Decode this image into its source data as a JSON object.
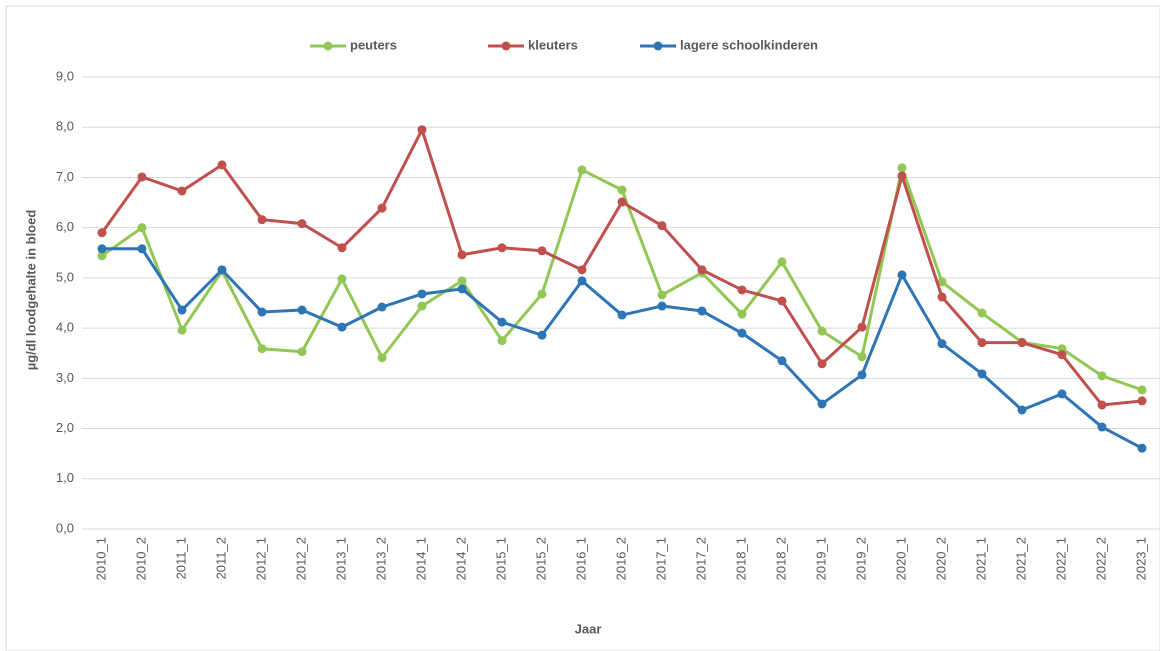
{
  "chart_data": {
    "type": "line",
    "x_label": "Jaar",
    "y_label": "µg/dl loodgehalte in bloed",
    "categories": [
      "2010_1",
      "2010_2",
      "2011_1",
      "2011_2",
      "2012_1",
      "2012_2",
      "2013_1",
      "2013_2",
      "2014_1",
      "2014_2",
      "2015_1",
      "2015_2",
      "2016_1",
      "2016_2",
      "2017_1",
      "2017_2",
      "2018_1",
      "2018_2",
      "2019_1",
      "2019_2",
      "2020_1",
      "2020_2",
      "2021_1",
      "2021_2",
      "2022_1",
      "2022_2",
      "2023_1"
    ],
    "series": [
      {
        "name": "peuters",
        "color": "#92c755",
        "values": [
          5.44,
          6.0,
          3.96,
          5.14,
          3.59,
          3.53,
          4.98,
          3.41,
          4.44,
          4.94,
          3.75,
          4.68,
          7.15,
          6.75,
          4.66,
          5.1,
          4.28,
          5.32,
          3.94,
          3.43,
          7.19,
          4.92,
          4.3,
          3.72,
          3.59,
          3.05,
          2.77
        ]
      },
      {
        "name": "kleuters",
        "color": "#c0504d",
        "values": [
          5.9,
          7.01,
          6.73,
          7.25,
          6.16,
          6.08,
          5.6,
          6.39,
          7.95,
          5.46,
          5.6,
          5.54,
          5.16,
          6.51,
          6.04,
          5.16,
          4.76,
          4.54,
          3.29,
          4.02,
          7.03,
          4.62,
          3.71,
          3.71,
          3.47,
          2.47,
          2.55
        ]
      },
      {
        "name": "lagere schoolkinderen",
        "color": "#2e75b6",
        "values": [
          5.58,
          5.58,
          4.36,
          5.16,
          4.32,
          4.36,
          4.02,
          4.42,
          4.68,
          4.78,
          4.12,
          3.86,
          4.94,
          4.26,
          4.44,
          4.34,
          3.9,
          3.35,
          2.49,
          3.07,
          5.06,
          3.69,
          3.09,
          2.37,
          2.69,
          2.03,
          1.61
        ]
      }
    ],
    "ylim": [
      0,
      9
    ],
    "yticks": [
      {
        "value": 0,
        "label": "0,0"
      },
      {
        "value": 1,
        "label": "1,0"
      },
      {
        "value": 2,
        "label": "2,0"
      },
      {
        "value": 3,
        "label": "3,0"
      },
      {
        "value": 4,
        "label": "4,0"
      },
      {
        "value": 5,
        "label": "5,0"
      },
      {
        "value": 6,
        "label": "6,0"
      },
      {
        "value": 7,
        "label": "7,0"
      },
      {
        "value": 8,
        "label": "8,0"
      },
      {
        "value": 9,
        "label": "9,0"
      }
    ],
    "grid": true,
    "legend": "top"
  }
}
